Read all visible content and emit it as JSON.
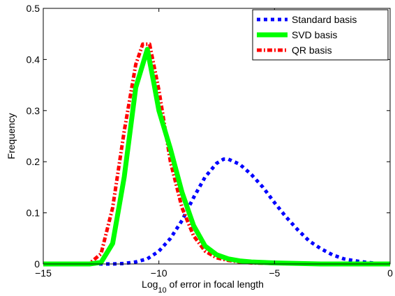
{
  "chart_data": {
    "type": "line",
    "xlabel": {
      "prefix": "Log",
      "subscript": "10",
      "suffix": " of error in focal length"
    },
    "ylabel": "Frequency",
    "xlim": [
      -15,
      0
    ],
    "ylim": [
      0,
      0.5
    ],
    "xticks": [
      -15,
      -10,
      -5,
      0
    ],
    "xtick_labels": [
      "−15",
      "−10",
      "−5",
      "0"
    ],
    "yticks": [
      0,
      0.1,
      0.2,
      0.3,
      0.4,
      0.5
    ],
    "ytick_labels": [
      "0",
      "0.1",
      "0.2",
      "0.3",
      "0.4",
      "0.5"
    ],
    "grid": false,
    "legend_position": "top-right",
    "series": [
      {
        "name": "Standard basis",
        "color": "#0000ff",
        "style": "dotted",
        "x": [
          -15,
          -14,
          -13,
          -12.5,
          -12,
          -11.5,
          -11,
          -10.5,
          -10,
          -9.5,
          -9,
          -8.5,
          -8,
          -7.5,
          -7.2,
          -7,
          -6.5,
          -6,
          -5.5,
          -5,
          -4.5,
          -4,
          -3.5,
          -3,
          -2.5,
          -2,
          -1.5,
          -1,
          -0.5,
          0
        ],
        "values": [
          0,
          0,
          0,
          0,
          0,
          0.001,
          0.004,
          0.01,
          0.025,
          0.05,
          0.085,
          0.13,
          0.17,
          0.197,
          0.205,
          0.205,
          0.195,
          0.175,
          0.15,
          0.12,
          0.092,
          0.067,
          0.045,
          0.03,
          0.018,
          0.01,
          0.006,
          0.003,
          0.001,
          0
        ]
      },
      {
        "name": "SVD basis",
        "color": "#00ff00",
        "style": "solid",
        "x": [
          -15,
          -14,
          -13,
          -12.5,
          -12,
          -11.5,
          -11,
          -10.5,
          -10.2,
          -10,
          -9.5,
          -9,
          -8.5,
          -8,
          -7.5,
          -7,
          -6.5,
          -6,
          -5,
          -4,
          -3,
          -2,
          -1,
          0
        ],
        "values": [
          0,
          0,
          0,
          0.003,
          0.04,
          0.17,
          0.345,
          0.42,
          0.35,
          0.3,
          0.225,
          0.14,
          0.075,
          0.035,
          0.018,
          0.01,
          0.006,
          0.004,
          0.002,
          0.001,
          0,
          0,
          0,
          0
        ]
      },
      {
        "name": "QR basis",
        "color": "#ff0000",
        "style": "dashdot",
        "x": [
          -15,
          -14,
          -13,
          -12.5,
          -12,
          -11.5,
          -11,
          -10.7,
          -10.4,
          -10,
          -9.5,
          -9,
          -8.5,
          -8,
          -7.5,
          -7,
          -6.5,
          -6,
          -5,
          -4,
          -3,
          -2,
          -1,
          0
        ],
        "values": [
          0,
          0,
          0.001,
          0.02,
          0.11,
          0.26,
          0.39,
          0.43,
          0.43,
          0.34,
          0.2,
          0.11,
          0.055,
          0.025,
          0.012,
          0.007,
          0.004,
          0.002,
          0.001,
          0,
          0,
          0,
          0,
          0
        ]
      }
    ]
  }
}
